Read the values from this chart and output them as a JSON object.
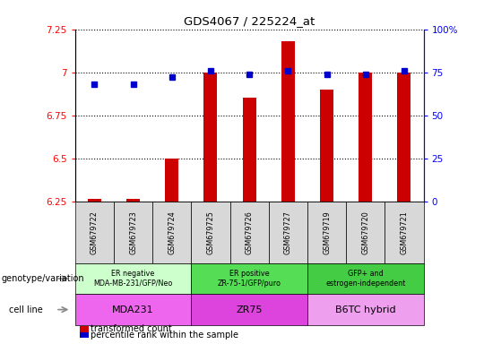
{
  "title": "GDS4067 / 225224_at",
  "samples": [
    "GSM679722",
    "GSM679723",
    "GSM679724",
    "GSM679725",
    "GSM679726",
    "GSM679727",
    "GSM679719",
    "GSM679720",
    "GSM679721"
  ],
  "bar_values": [
    6.262,
    6.262,
    6.5,
    7.0,
    6.85,
    7.18,
    6.9,
    7.0,
    7.0
  ],
  "percentile_values": [
    68,
    68,
    72,
    76,
    74,
    76,
    74,
    74,
    76
  ],
  "ylim": [
    6.25,
    7.25
  ],
  "yticks_left": [
    6.25,
    6.5,
    6.75,
    7.0,
    7.25
  ],
  "yticks_right": [
    0,
    25,
    50,
    75,
    100
  ],
  "right_ylim": [
    0,
    100
  ],
  "groups": [
    {
      "label": "ER negative\nMDA-MB-231/GFP/Neo",
      "start": 0,
      "end": 3,
      "color": "#ccffcc"
    },
    {
      "label": "ER positive\nZR-75-1/GFP/puro",
      "start": 3,
      "end": 6,
      "color": "#55dd55"
    },
    {
      "label": "GFP+ and\nestrogen-independent",
      "start": 6,
      "end": 9,
      "color": "#44cc44"
    }
  ],
  "cell_lines": [
    {
      "label": "MDA231",
      "start": 0,
      "end": 3,
      "color": "#ee66ee"
    },
    {
      "label": "ZR75",
      "start": 3,
      "end": 6,
      "color": "#dd44dd"
    },
    {
      "label": "B6TC hybrid",
      "start": 6,
      "end": 9,
      "color": "#eea0ee"
    }
  ],
  "bar_color": "#cc0000",
  "dot_color": "#0000cc",
  "bar_width": 0.35,
  "legend_labels": [
    "transformed count",
    "percentile rank within the sample"
  ],
  "row_label_genotype": "genotype/variation",
  "row_label_cell": "cell line"
}
